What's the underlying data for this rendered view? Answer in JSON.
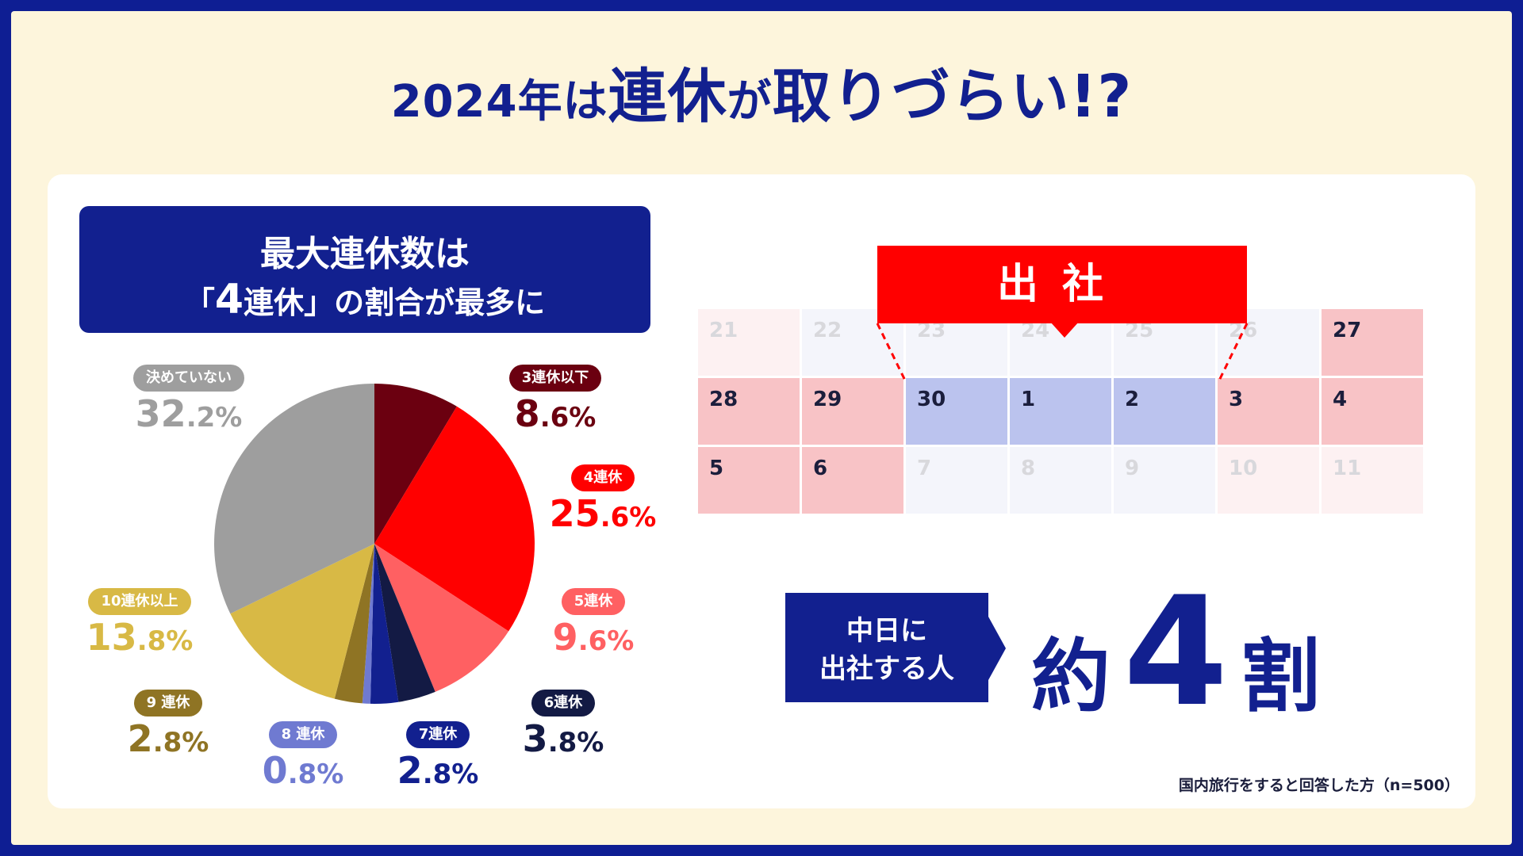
{
  "title": {
    "pre": "2024年は",
    "big1": "連休",
    "mid": "が",
    "big2": "取りづらい!?"
  },
  "subhead": {
    "line1": "最大連休数は",
    "line2_pre": "「",
    "line2_num": "4",
    "line2_post": "連休」の割合が最多に"
  },
  "chart_data": {
    "type": "pie",
    "start_angle_deg": 0,
    "direction": "clockwise",
    "slices": [
      {
        "label": "3連休以下",
        "value": 8.6,
        "int": "8",
        "dec": ".6%",
        "color": "#6b0010"
      },
      {
        "label": "4連休",
        "value": 25.6,
        "int": "25",
        "dec": ".6%",
        "color": "#ff0000"
      },
      {
        "label": "5連休",
        "value": 9.6,
        "int": "9",
        "dec": ".6%",
        "color": "#ff6062"
      },
      {
        "label": "6連休",
        "value": 3.8,
        "int": "3",
        "dec": ".8%",
        "color": "#131a44"
      },
      {
        "label": "7連休",
        "value": 2.8,
        "int": "2",
        "dec": ".8%",
        "color": "#12208f"
      },
      {
        "label": "8 連休",
        "value": 0.8,
        "int": "0",
        "dec": ".8%",
        "color": "#6f7ad1"
      },
      {
        "label": "9 連休",
        "value": 2.8,
        "int": "2",
        "dec": ".8%",
        "color": "#8f7424"
      },
      {
        "label": "10連休以上",
        "value": 13.8,
        "int": "13",
        "dec": ".8%",
        "color": "#d8b945"
      },
      {
        "label": "決めていない",
        "value": 32.2,
        "int": "32",
        "dec": ".2%",
        "color": "#9e9e9e"
      }
    ]
  },
  "calendar": {
    "banner": "出社",
    "rows": [
      [
        {
          "d": "21",
          "s": "fadered"
        },
        {
          "d": "22",
          "s": "fadeblue"
        },
        {
          "d": "23",
          "s": "fadeblue"
        },
        {
          "d": "24",
          "s": "fadeblue"
        },
        {
          "d": "25",
          "s": "fadeblue"
        },
        {
          "d": "26",
          "s": "fadeblue"
        },
        {
          "d": "27",
          "s": "red"
        }
      ],
      [
        {
          "d": "28",
          "s": "red"
        },
        {
          "d": "29",
          "s": "red"
        },
        {
          "d": "30",
          "s": "blue"
        },
        {
          "d": "1",
          "s": "blue"
        },
        {
          "d": "2",
          "s": "blue"
        },
        {
          "d": "3",
          "s": "red"
        },
        {
          "d": "4",
          "s": "red"
        }
      ],
      [
        {
          "d": "5",
          "s": "red"
        },
        {
          "d": "6",
          "s": "red"
        },
        {
          "d": "7",
          "s": "fadeblue"
        },
        {
          "d": "8",
          "s": "fadeblue"
        },
        {
          "d": "9",
          "s": "fadeblue"
        },
        {
          "d": "10",
          "s": "fadered"
        },
        {
          "d": "11",
          "s": "fadered"
        }
      ]
    ]
  },
  "callout": {
    "line1": "中日に",
    "line2": "出社する人"
  },
  "result": {
    "pre": "約",
    "num": "4",
    "post": "割"
  },
  "footnote": "国内旅行をすると回答した方（n=500）"
}
